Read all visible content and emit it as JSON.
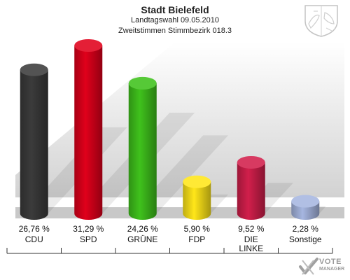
{
  "header": {
    "title": "Stadt Bielefeld",
    "subtitle1": "Landtagswahl 09.05.2010",
    "subtitle2": "Zweitstimmen Stimmbezirk 018.3"
  },
  "logo": {
    "line1": "VOTE",
    "line2": "MANAGER"
  },
  "chart_data": {
    "type": "bar",
    "title": "Stadt Bielefeld",
    "categories": [
      "CDU",
      "SPD",
      "GRÜNE",
      "FDP",
      "DIE LINKE",
      "Sonstige"
    ],
    "category_lines": [
      [
        "CDU"
      ],
      [
        "SPD"
      ],
      [
        "GRÜNE"
      ],
      [
        "FDP"
      ],
      [
        "DIE",
        "LINKE"
      ],
      [
        "Sonstige"
      ]
    ],
    "values": [
      26.76,
      31.29,
      24.26,
      5.9,
      9.52,
      2.28
    ],
    "value_labels": [
      "26,76 %",
      "31,29 %",
      "24,26 %",
      "5,90 %",
      "9,52 %",
      "2,28 %"
    ],
    "colors": [
      "#3b3b3b",
      "#e0001b",
      "#3fc21c",
      "#ffe619",
      "#d11f4b",
      "#a6b6e0"
    ],
    "xlabel": "",
    "ylabel": "",
    "ylim": [
      0,
      31.29
    ],
    "grid": false,
    "legend": "none"
  }
}
